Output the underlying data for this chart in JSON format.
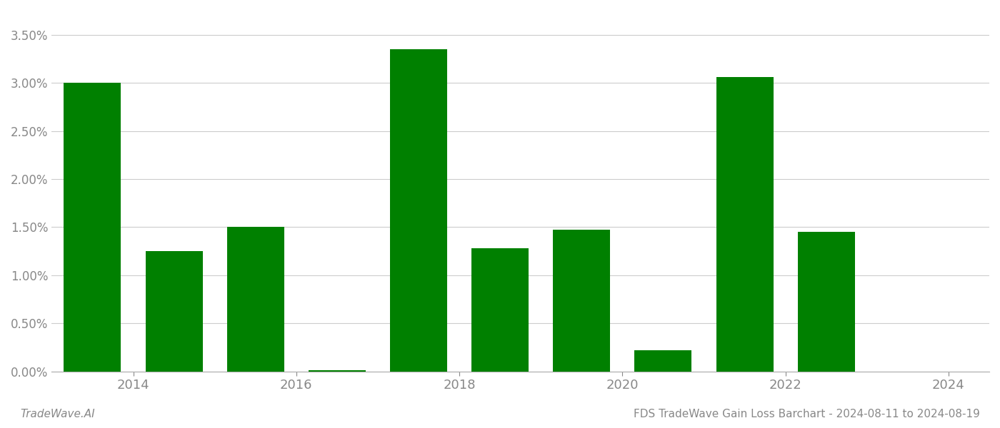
{
  "bar_positions": [
    2013.5,
    2014.5,
    2015.5,
    2016.5,
    2017.5,
    2018.5,
    2019.5,
    2020.5,
    2021.5,
    2022.5
  ],
  "values": [
    0.03,
    0.0125,
    0.015,
    0.00015,
    0.0335,
    0.0128,
    0.0147,
    0.0022,
    0.0306,
    0.0145
  ],
  "bar_color": "#008000",
  "background_color": "#ffffff",
  "ylim": [
    0,
    0.0375
  ],
  "yticks": [
    0.0,
    0.005,
    0.01,
    0.015,
    0.02,
    0.025,
    0.03,
    0.035
  ],
  "xtick_positions": [
    2014,
    2016,
    2018,
    2020,
    2022,
    2024
  ],
  "xtick_labels": [
    "2014",
    "2016",
    "2018",
    "2020",
    "2022",
    "2024"
  ],
  "xlim": [
    2013.0,
    2024.5
  ],
  "footer_left": "TradeWave.AI",
  "footer_right": "FDS TradeWave Gain Loss Barchart - 2024-08-11 to 2024-08-19",
  "footer_fontsize": 11,
  "grid_color": "#cccccc",
  "axis_color": "#aaaaaa",
  "tick_color": "#888888",
  "bar_width": 0.7
}
